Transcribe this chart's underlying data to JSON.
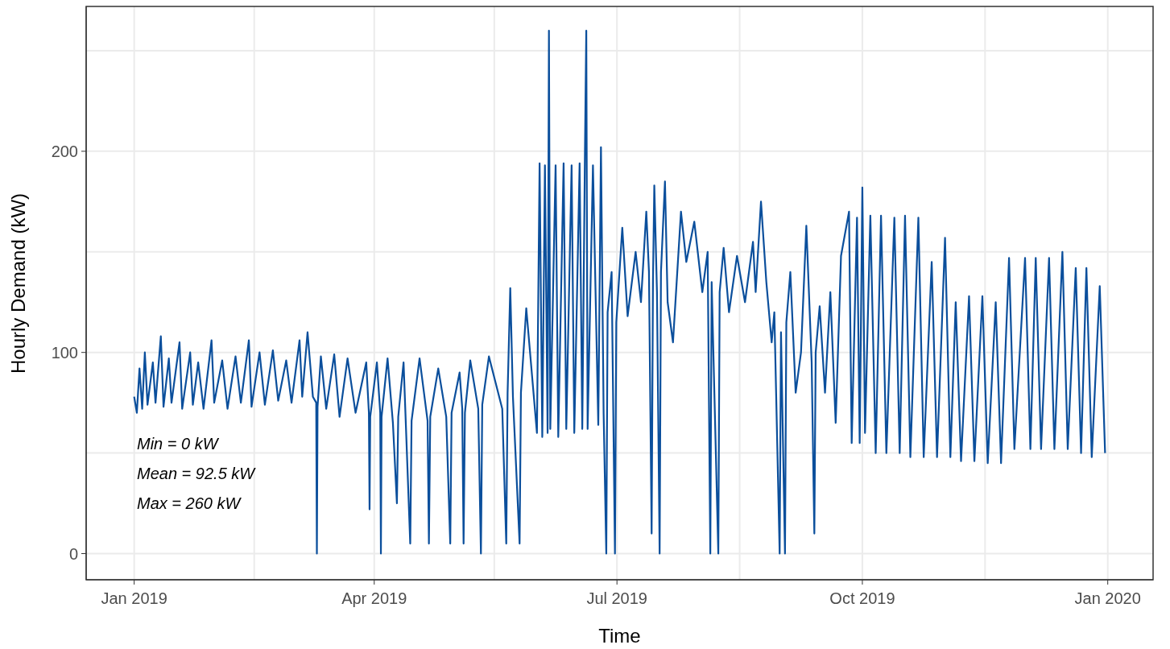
{
  "chart_data": {
    "type": "line",
    "xlabel": "Time",
    "ylabel": "Hourly Demand (kW)",
    "annotations": [
      "Min = 0 kW",
      "Mean = 92.5 kW",
      "Max = 260 kW"
    ],
    "xlim": [
      "2018-12-14",
      "2020-01-18"
    ],
    "xticks": [
      {
        "value": "2019-01-01",
        "label": "Jan 2019"
      },
      {
        "value": "2019-02-15",
        "label": null
      },
      {
        "value": "2019-04-01",
        "label": "Apr 2019"
      },
      {
        "value": "2019-05-16",
        "label": null
      },
      {
        "value": "2019-07-01",
        "label": "Jul 2019"
      },
      {
        "value": "2019-08-16",
        "label": null
      },
      {
        "value": "2019-10-01",
        "label": "Oct 2019"
      },
      {
        "value": "2019-11-16",
        "label": null
      },
      {
        "value": "2020-01-01",
        "label": "Jan 2020"
      }
    ],
    "ylim": [
      -13,
      272
    ],
    "yticks": [
      0,
      {
        "value": 50,
        "label": null
      },
      100,
      {
        "value": 150,
        "label": null
      },
      200,
      {
        "value": 250,
        "label": null
      }
    ],
    "grid": true,
    "marker": "none",
    "line_style": "solid",
    "series": [
      {
        "color": "#0b4f9c",
        "x": [
          "2019-01-01",
          "2019-01-02",
          "2019-01-03",
          "2019-01-04",
          "2019-01-05",
          "2019-01-06",
          "2019-01-08",
          "2019-01-09",
          "2019-01-11",
          "2019-01-12",
          "2019-01-14",
          "2019-01-15",
          "2019-01-18",
          "2019-01-19",
          "2019-01-22",
          "2019-01-23",
          "2019-01-25",
          "2019-01-27",
          "2019-01-30",
          "2019-01-31",
          "2019-02-03",
          "2019-02-05",
          "2019-02-08",
          "2019-02-10",
          "2019-02-13",
          "2019-02-14",
          "2019-02-17",
          "2019-02-19",
          "2019-02-22",
          "2019-02-24",
          "2019-02-27",
          "2019-03-01",
          "2019-03-04",
          "2019-03-05",
          "2019-03-07",
          "2019-03-09",
          "2019-03-10T06:00",
          "2019-03-10T12:00",
          "2019-03-10T18:00",
          "2019-03-12",
          "2019-03-14",
          "2019-03-17",
          "2019-03-19",
          "2019-03-22",
          "2019-03-25",
          "2019-03-29",
          "2019-03-30T00:00",
          "2019-03-30T06:00",
          "2019-03-30T12:00",
          "2019-04-02",
          "2019-04-03T06:00",
          "2019-04-03T12:00",
          "2019-04-03T18:00",
          "2019-04-06",
          "2019-04-08",
          "2019-04-09T12:00",
          "2019-04-10",
          "2019-04-12",
          "2019-04-14T12:00",
          "2019-04-15",
          "2019-04-18",
          "2019-04-21",
          "2019-04-21T12:00",
          "2019-04-22",
          "2019-04-25",
          "2019-04-28",
          "2019-04-29T12:00",
          "2019-04-30",
          "2019-05-03",
          "2019-05-04",
          "2019-05-04T12:00",
          "2019-05-05",
          "2019-05-07",
          "2019-05-10",
          "2019-05-11T00:00",
          "2019-05-11T12:00",
          "2019-05-14",
          "2019-05-19",
          "2019-05-20T12:00",
          "2019-05-21",
          "2019-05-22",
          "2019-05-23",
          "2019-05-25T12:00",
          "2019-05-26",
          "2019-05-28",
          "2019-06-01",
          "2019-06-02",
          "2019-06-03",
          "2019-06-04",
          "2019-06-05T00:00",
          "2019-06-05T12:00",
          "2019-06-06",
          "2019-06-08",
          "2019-06-09",
          "2019-06-11",
          "2019-06-12",
          "2019-06-14",
          "2019-06-15",
          "2019-06-17",
          "2019-06-18",
          "2019-06-19T00:00",
          "2019-06-19T12:00",
          "2019-06-20",
          "2019-06-22",
          "2019-06-24",
          "2019-06-25",
          "2019-06-26",
          "2019-06-27T00:00",
          "2019-06-27T12:00",
          "2019-06-29",
          "2019-06-30T06:00",
          "2019-06-30T18:00",
          "2019-07-03",
          "2019-07-05",
          "2019-07-08",
          "2019-07-10",
          "2019-07-12",
          "2019-07-13",
          "2019-07-14T00:00",
          "2019-07-14T12:00",
          "2019-07-15",
          "2019-07-16",
          "2019-07-17T00:00",
          "2019-07-17T12:00",
          "2019-07-19",
          "2019-07-20",
          "2019-07-22",
          "2019-07-25",
          "2019-07-27",
          "2019-07-30",
          "2019-08-02",
          "2019-08-04",
          "2019-08-05T00:00",
          "2019-08-05T12:00",
          "2019-08-08T00:00",
          "2019-08-08T12:00",
          "2019-08-10",
          "2019-08-12",
          "2019-08-15",
          "2019-08-18",
          "2019-08-21",
          "2019-08-22",
          "2019-08-24",
          "2019-08-26",
          "2019-08-28",
          "2019-08-29",
          "2019-08-31T00:00",
          "2019-08-31T12:00",
          "2019-09-02T00:00",
          "2019-09-02T12:00",
          "2019-09-04",
          "2019-09-06",
          "2019-09-08",
          "2019-09-10",
          "2019-09-12",
          "2019-09-13T00:00",
          "2019-09-13T12:00",
          "2019-09-15",
          "2019-09-17",
          "2019-09-19",
          "2019-09-21",
          "2019-09-23",
          "2019-09-26",
          "2019-09-27",
          "2019-09-29",
          "2019-09-30",
          "2019-10-01",
          "2019-10-02",
          "2019-10-04",
          "2019-10-06",
          "2019-10-08",
          "2019-10-10",
          "2019-10-13",
          "2019-10-15",
          "2019-10-17",
          "2019-10-19",
          "2019-10-22",
          "2019-10-24",
          "2019-10-27",
          "2019-10-29",
          "2019-11-01",
          "2019-11-03",
          "2019-11-05",
          "2019-11-07",
          "2019-11-10",
          "2019-11-12",
          "2019-11-15",
          "2019-11-17",
          "2019-11-20",
          "2019-11-22",
          "2019-11-25",
          "2019-11-27",
          "2019-12-01",
          "2019-12-03",
          "2019-12-05",
          "2019-12-07",
          "2019-12-10",
          "2019-12-12",
          "2019-12-15",
          "2019-12-17",
          "2019-12-20",
          "2019-12-22",
          "2019-12-24",
          "2019-12-26",
          "2019-12-29",
          "2019-12-31"
        ],
        "values": [
          78,
          70,
          92,
          72,
          100,
          74,
          95,
          75,
          108,
          73,
          97,
          75,
          105,
          72,
          100,
          74,
          95,
          72,
          106,
          75,
          96,
          72,
          98,
          75,
          106,
          73,
          100,
          74,
          101,
          76,
          96,
          75,
          106,
          78,
          110,
          78,
          75,
          0,
          73,
          98,
          72,
          99,
          68,
          97,
          70,
          95,
          70,
          22,
          68,
          95,
          70,
          0,
          68,
          97,
          65,
          25,
          68,
          95,
          5,
          66,
          97,
          66,
          5,
          68,
          92,
          68,
          5,
          70,
          90,
          72,
          5,
          70,
          96,
          72,
          0,
          74,
          98,
          72,
          5,
          80,
          132,
          78,
          5,
          80,
          122,
          60,
          194,
          58,
          193,
          60,
          260,
          62,
          193,
          58,
          194,
          62,
          193,
          60,
          194,
          62,
          200,
          260,
          62,
          193,
          64,
          202,
          70,
          0,
          120,
          140,
          0,
          115,
          162,
          118,
          150,
          125,
          170,
          140,
          10,
          135,
          183,
          130,
          0,
          140,
          185,
          125,
          105,
          170,
          145,
          165,
          130,
          150,
          0,
          135,
          0,
          130,
          152,
          120,
          148,
          125,
          155,
          130,
          175,
          135,
          105,
          120,
          0,
          110,
          0,
          115,
          140,
          80,
          100,
          163,
          95,
          10,
          100,
          123,
          80,
          130,
          65,
          148,
          170,
          55,
          167,
          55,
          182,
          60,
          168,
          50,
          168,
          50,
          167,
          50,
          168,
          48,
          167,
          48,
          145,
          48,
          157,
          48,
          125,
          46,
          128,
          46,
          128,
          45,
          125,
          45,
          147,
          52,
          147,
          52,
          147,
          52,
          147,
          52,
          150,
          52,
          142,
          50,
          142,
          48,
          133,
          50
        ]
      }
    ]
  }
}
